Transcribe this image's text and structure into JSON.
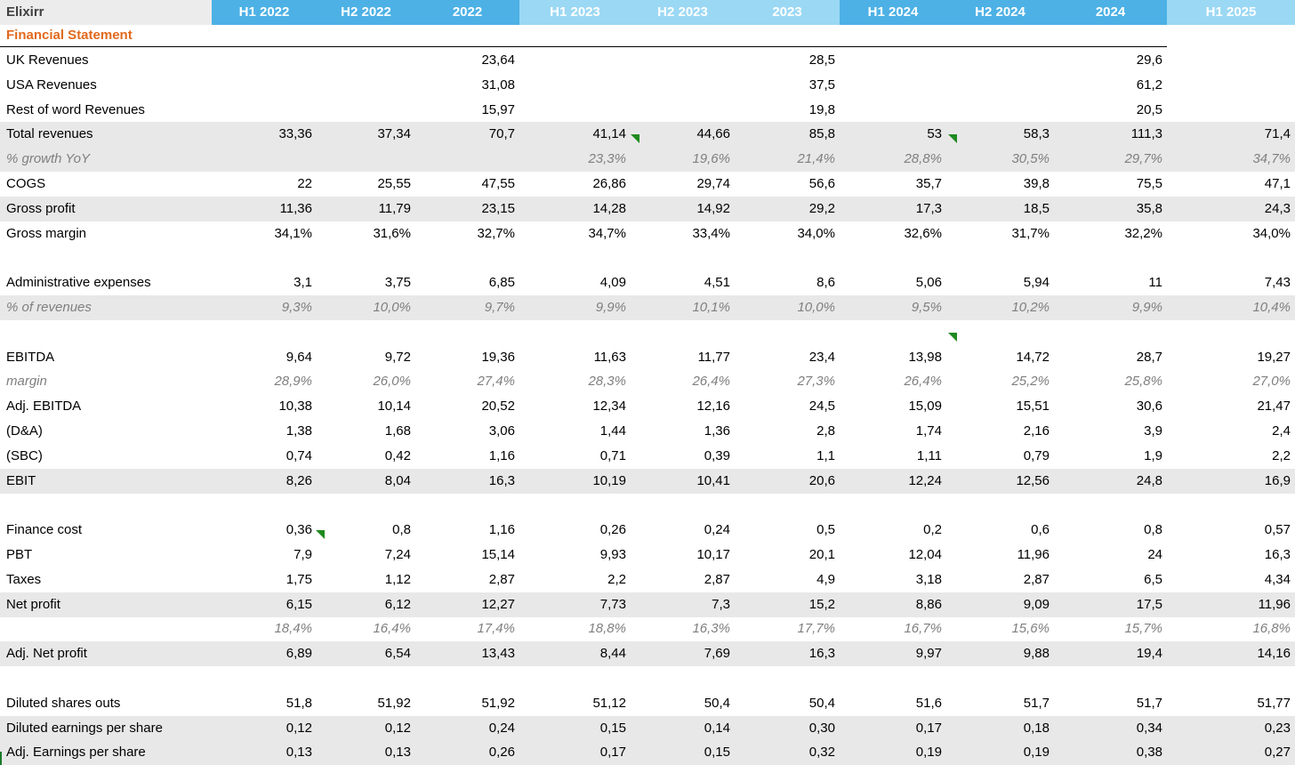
{
  "sheet_name": "Elixirr",
  "section_title": "Financial Statement",
  "columns": [
    "H1 2022",
    "H2 2022",
    "2022",
    "H1 2023",
    "H2 2023",
    "2023",
    "H1 2024",
    "H2 2024",
    "2024",
    "H1 2025"
  ],
  "header_colors": [
    "#4db1e5",
    "#4db1e5",
    "#4db1e5",
    "#9bd8f4",
    "#9bd8f4",
    "#9bd8f4",
    "#4db1e5",
    "#4db1e5",
    "#4db1e5",
    "#9bd8f4"
  ],
  "rows": [
    {
      "label": "UK Revenues",
      "values": [
        "",
        "",
        "23,64",
        "",
        "",
        "28,5",
        "",
        "",
        "29,6",
        ""
      ]
    },
    {
      "label": "USA Revenues",
      "values": [
        "",
        "",
        "31,08",
        "",
        "",
        "37,5",
        "",
        "",
        "61,2",
        ""
      ]
    },
    {
      "label": "Rest of word Revenues",
      "values": [
        "",
        "",
        "15,97",
        "",
        "",
        "19,8",
        "",
        "",
        "20,5",
        ""
      ]
    },
    {
      "label": "Total revenues",
      "values": [
        "33,36",
        "37,34",
        "70,7",
        "41,14",
        "44,66",
        "85,8",
        "53",
        "58,3",
        "111,3",
        "71,4"
      ]
    },
    {
      "label": "% growth YoY",
      "values": [
        "",
        "",
        "",
        "23,3%",
        "19,6%",
        "21,4%",
        "28,8%",
        "30,5%",
        "29,7%",
        "34,7%"
      ]
    },
    {
      "label": "COGS",
      "values": [
        "22",
        "25,55",
        "47,55",
        "26,86",
        "29,74",
        "56,6",
        "35,7",
        "39,8",
        "75,5",
        "47,1"
      ]
    },
    {
      "label": "Gross profit",
      "values": [
        "11,36",
        "11,79",
        "23,15",
        "14,28",
        "14,92",
        "29,2",
        "17,3",
        "18,5",
        "35,8",
        "24,3"
      ]
    },
    {
      "label": "Gross margin",
      "values": [
        "34,1%",
        "31,6%",
        "32,7%",
        "34,7%",
        "33,4%",
        "34,0%",
        "32,6%",
        "31,7%",
        "32,2%",
        "34,0%"
      ]
    },
    {
      "label": "",
      "values": [
        "",
        "",
        "",
        "",
        "",
        "",
        "",
        "",
        "",
        ""
      ]
    },
    {
      "label": "Administrative expenses",
      "values": [
        "3,1",
        "3,75",
        "6,85",
        "4,09",
        "4,51",
        "8,6",
        "5,06",
        "5,94",
        "11",
        "7,43"
      ]
    },
    {
      "label": "% of revenues",
      "values": [
        "9,3%",
        "10,0%",
        "9,7%",
        "9,9%",
        "10,1%",
        "10,0%",
        "9,5%",
        "10,2%",
        "9,9%",
        "10,4%"
      ]
    },
    {
      "label": "",
      "values": [
        "",
        "",
        "",
        "",
        "",
        "",
        "",
        "",
        "",
        ""
      ]
    },
    {
      "label": "EBITDA",
      "values": [
        "9,64",
        "9,72",
        "19,36",
        "11,63",
        "11,77",
        "23,4",
        "13,98",
        "14,72",
        "28,7",
        "19,27"
      ]
    },
    {
      "label": "margin",
      "values": [
        "28,9%",
        "26,0%",
        "27,4%",
        "28,3%",
        "26,4%",
        "27,3%",
        "26,4%",
        "25,2%",
        "25,8%",
        "27,0%"
      ]
    },
    {
      "label": "Adj. EBITDA",
      "values": [
        "10,38",
        "10,14",
        "20,52",
        "12,34",
        "12,16",
        "24,5",
        "15,09",
        "15,51",
        "30,6",
        "21,47"
      ]
    },
    {
      "label": "(D&A)",
      "values": [
        "1,38",
        "1,68",
        "3,06",
        "1,44",
        "1,36",
        "2,8",
        "1,74",
        "2,16",
        "3,9",
        "2,4"
      ]
    },
    {
      "label": "(SBC)",
      "values": [
        "0,74",
        "0,42",
        "1,16",
        "0,71",
        "0,39",
        "1,1",
        "1,11",
        "0,79",
        "1,9",
        "2,2"
      ]
    },
    {
      "label": "EBIT",
      "values": [
        "8,26",
        "8,04",
        "16,3",
        "10,19",
        "10,41",
        "20,6",
        "12,24",
        "12,56",
        "24,8",
        "16,9"
      ]
    },
    {
      "label": "",
      "values": [
        "",
        "",
        "",
        "",
        "",
        "",
        "",
        "",
        "",
        ""
      ]
    },
    {
      "label": "Finance cost",
      "values": [
        "0,36",
        "0,8",
        "1,16",
        "0,26",
        "0,24",
        "0,5",
        "0,2",
        "0,6",
        "0,8",
        "0,57"
      ]
    },
    {
      "label": "PBT",
      "values": [
        "7,9",
        "7,24",
        "15,14",
        "9,93",
        "10,17",
        "20,1",
        "12,04",
        "11,96",
        "24",
        "16,3"
      ]
    },
    {
      "label": "Taxes",
      "values": [
        "1,75",
        "1,12",
        "2,87",
        "2,2",
        "2,87",
        "4,9",
        "3,18",
        "2,87",
        "6,5",
        "4,34"
      ]
    },
    {
      "label": "Net profit",
      "values": [
        "6,15",
        "6,12",
        "12,27",
        "7,73",
        "7,3",
        "15,2",
        "8,86",
        "9,09",
        "17,5",
        "11,96"
      ]
    },
    {
      "label": "",
      "values": [
        "18,4%",
        "16,4%",
        "17,4%",
        "18,8%",
        "16,3%",
        "17,7%",
        "16,7%",
        "15,6%",
        "15,7%",
        "16,8%"
      ]
    },
    {
      "label": "Adj. Net profit",
      "values": [
        "6,89",
        "6,54",
        "13,43",
        "8,44",
        "7,69",
        "16,3",
        "9,97",
        "9,88",
        "19,4",
        "14,16"
      ]
    },
    {
      "label": "",
      "values": [
        "",
        "",
        "",
        "",
        "",
        "",
        "",
        "",
        "",
        ""
      ]
    },
    {
      "label": "Diluted shares outs",
      "values": [
        "51,8",
        "51,92",
        "51,92",
        "51,12",
        "50,4",
        "50,4",
        "51,6",
        "51,7",
        "51,7",
        "51,77"
      ]
    },
    {
      "label": "Diluted earnings per share",
      "values": [
        "0,12",
        "0,12",
        "0,24",
        "0,15",
        "0,14",
        "0,30",
        "0,17",
        "0,18",
        "0,34",
        "0,23"
      ]
    },
    {
      "label": "Adj. Earnings per share",
      "values": [
        "0,13",
        "0,13",
        "0,26",
        "0,17",
        "0,15",
        "0,32",
        "0,19",
        "0,19",
        "0,38",
        "0,27"
      ]
    }
  ]
}
